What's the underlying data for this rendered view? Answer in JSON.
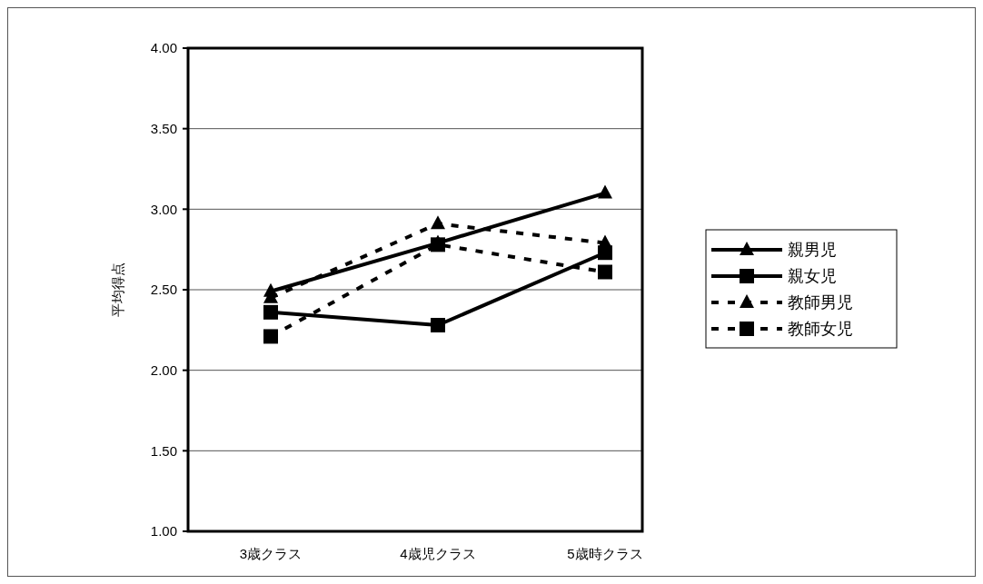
{
  "chart_data": {
    "type": "line",
    "ylabel": "平均得点",
    "categories": [
      "3歳クラス",
      "4歳児クラス",
      "5歳時クラス"
    ],
    "series": [
      {
        "name": "親男児",
        "color": "#000000",
        "values": [
          2.49,
          2.79,
          3.1
        ],
        "marker": "triangle",
        "line_style": "solid"
      },
      {
        "name": "親女児",
        "color": "#000000",
        "values": [
          2.36,
          2.28,
          2.73
        ],
        "marker": "square",
        "line_style": "solid"
      },
      {
        "name": "教師男児",
        "color": "#000000",
        "values": [
          2.45,
          2.91,
          2.79
        ],
        "marker": "triangle",
        "line_style": "dashed"
      },
      {
        "name": "教師女児",
        "color": "#000000",
        "values": [
          2.21,
          2.78,
          2.61
        ],
        "marker": "square",
        "line_style": "dashed"
      }
    ],
    "ylim": [
      1,
      4
    ],
    "yticks": [
      {
        "value": 1,
        "label": "1.00"
      },
      {
        "value": 1.5,
        "label": "1.50"
      },
      {
        "value": 2,
        "label": "2.00"
      },
      {
        "value": 2.5,
        "label": "2.50"
      },
      {
        "value": 3,
        "label": "3.00"
      },
      {
        "value": 3.5,
        "label": "3.50"
      },
      {
        "value": 4,
        "label": "4.00"
      }
    ],
    "grid": "y",
    "legend": "right"
  }
}
